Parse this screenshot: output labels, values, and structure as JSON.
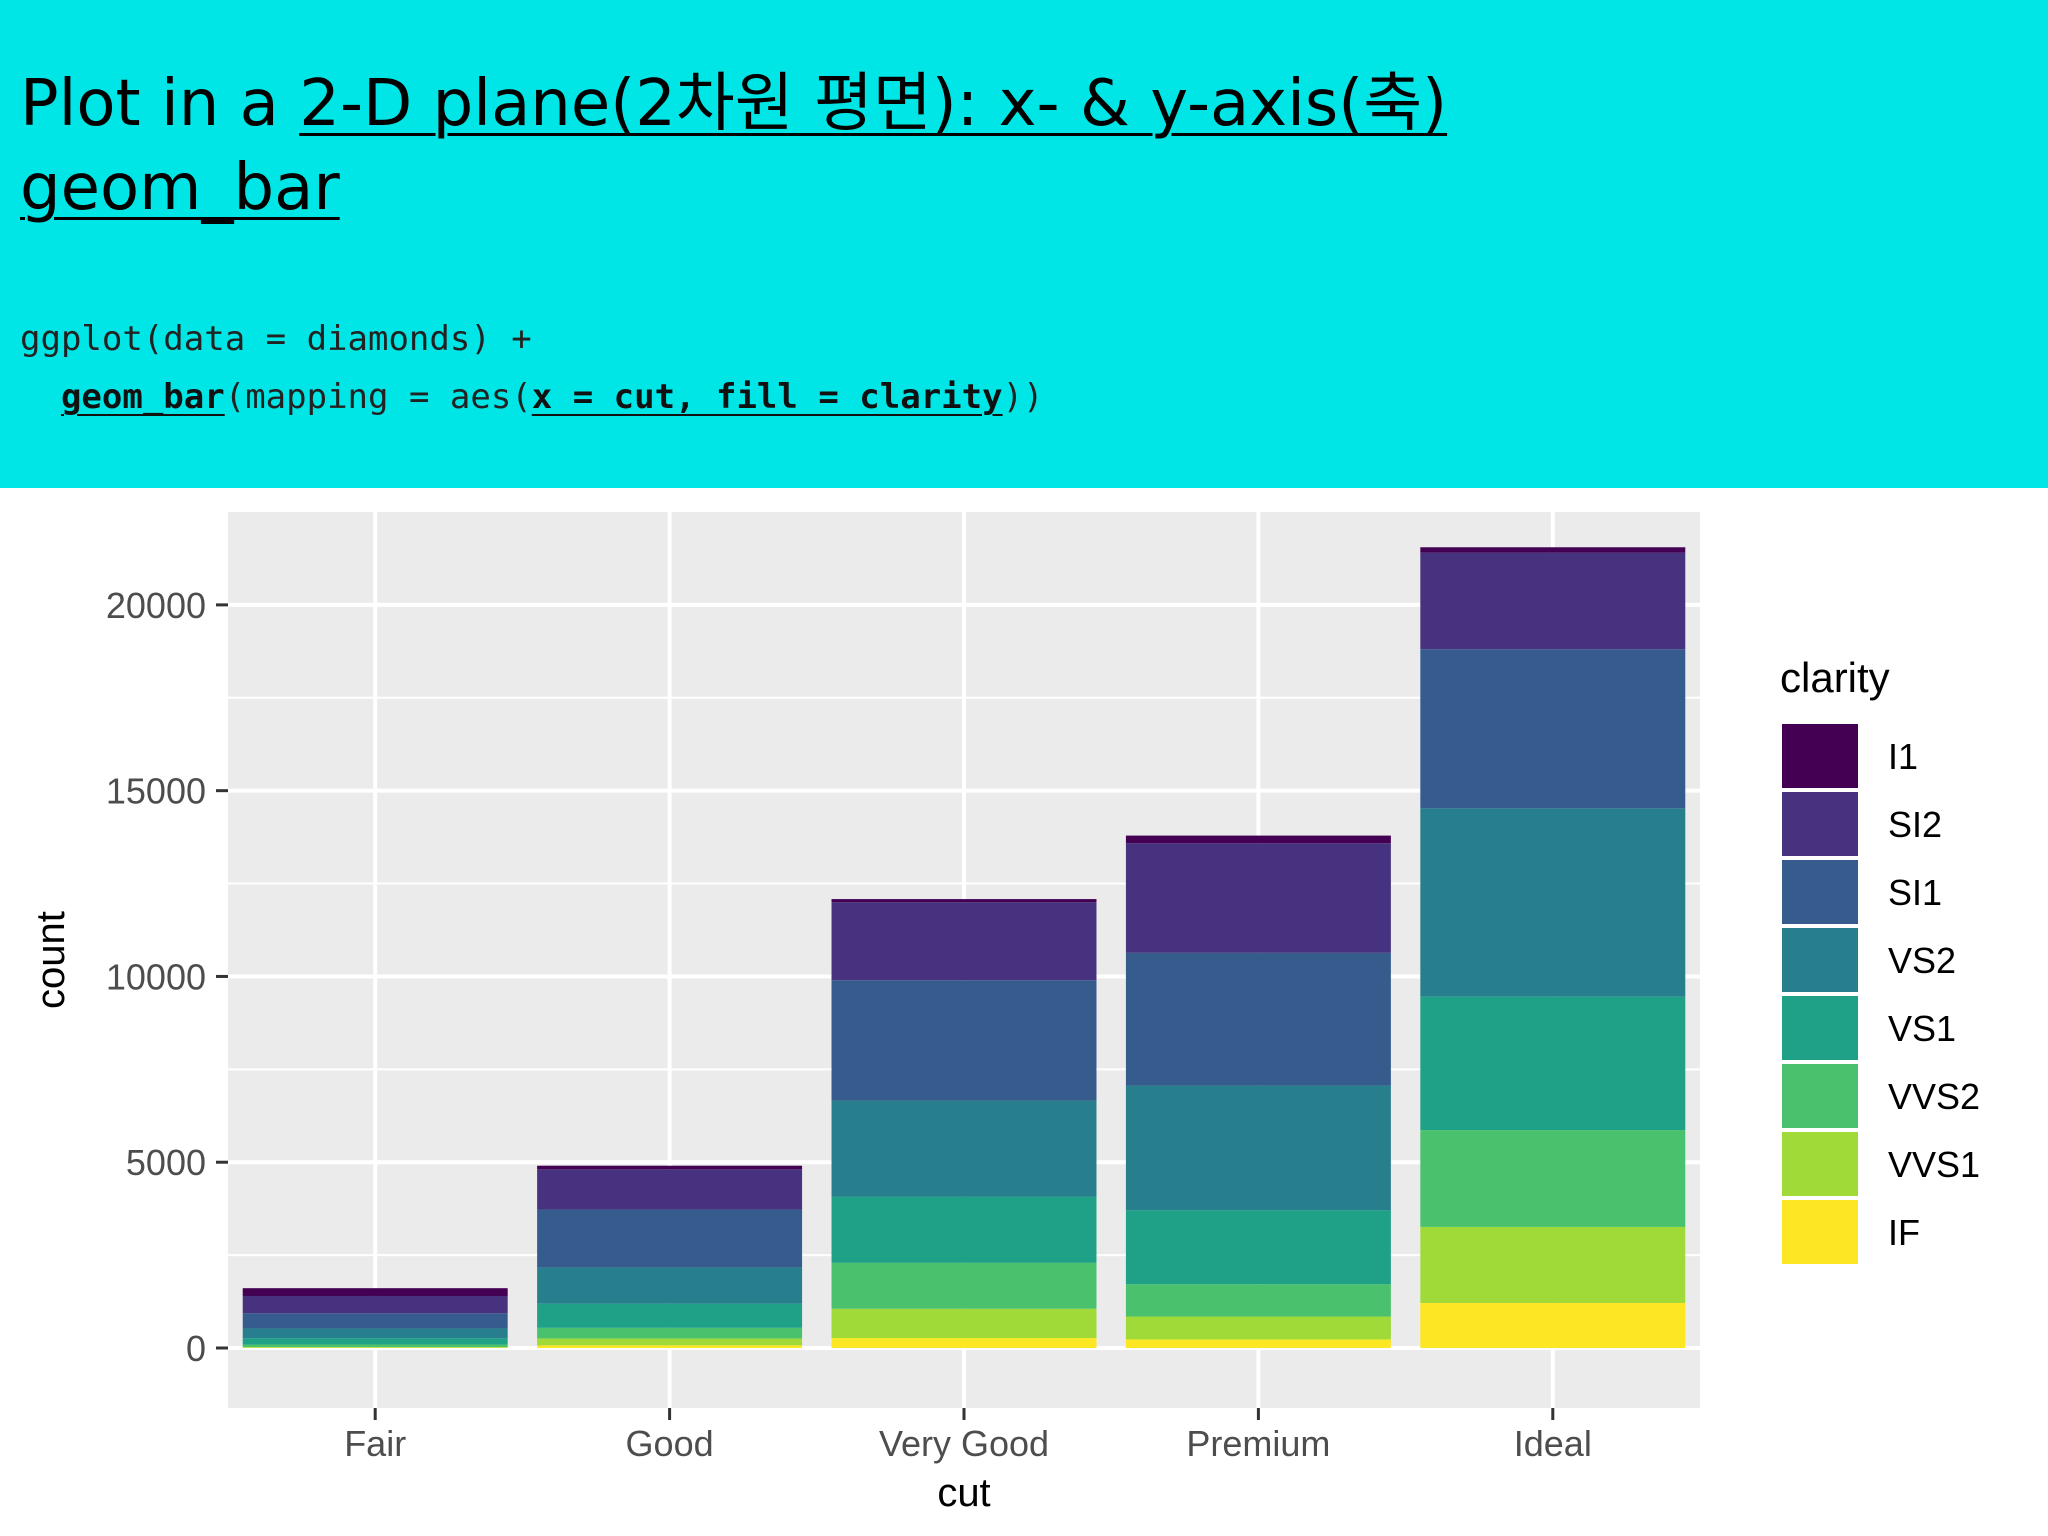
{
  "header": {
    "title_prefix": "Plot in a ",
    "title_underlined": "2-D plane(2차원 평면): x- & y-axis(축)",
    "subtitle": "geom_bar",
    "code_line1": "ggplot(data = diamonds) +",
    "code_fn": "geom_bar",
    "code_mid": "(mapping = aes(",
    "code_args": "x = cut, fill = clarity",
    "code_end": "))"
  },
  "colors": {
    "header_bg": "#00e6e6",
    "panel_bg": "#ebebeb",
    "grid": "#ffffff"
  },
  "chart_data": {
    "type": "bar",
    "stacked": true,
    "xlabel": "cut",
    "ylabel": "count",
    "ylim": [
      0,
      22500
    ],
    "yticks": [
      0,
      5000,
      10000,
      15000,
      20000
    ],
    "categories": [
      "Fair",
      "Good",
      "Very Good",
      "Premium",
      "Ideal"
    ],
    "legend_title": "clarity",
    "legend_position": "right",
    "grid": true,
    "series": [
      {
        "name": "I1",
        "color": "#440154",
        "values": [
          210,
          96,
          84,
          205,
          146
        ]
      },
      {
        "name": "SI2",
        "color": "#46327e",
        "values": [
          466,
          1081,
          2100,
          2949,
          2598
        ]
      },
      {
        "name": "SI1",
        "color": "#365c8d",
        "values": [
          408,
          1560,
          3240,
          3575,
          4282
        ]
      },
      {
        "name": "VS2",
        "color": "#277f8e",
        "values": [
          261,
          978,
          2591,
          3357,
          5071
        ]
      },
      {
        "name": "VS1",
        "color": "#1fa187",
        "values": [
          170,
          648,
          1775,
          1989,
          3589
        ]
      },
      {
        "name": "VVS2",
        "color": "#4ac16d",
        "values": [
          69,
          286,
          1235,
          870,
          2606
        ]
      },
      {
        "name": "VVS1",
        "color": "#a0da39",
        "values": [
          17,
          186,
          789,
          616,
          2047
        ]
      },
      {
        "name": "IF",
        "color": "#fde725",
        "values": [
          9,
          71,
          268,
          230,
          1212
        ]
      }
    ]
  }
}
